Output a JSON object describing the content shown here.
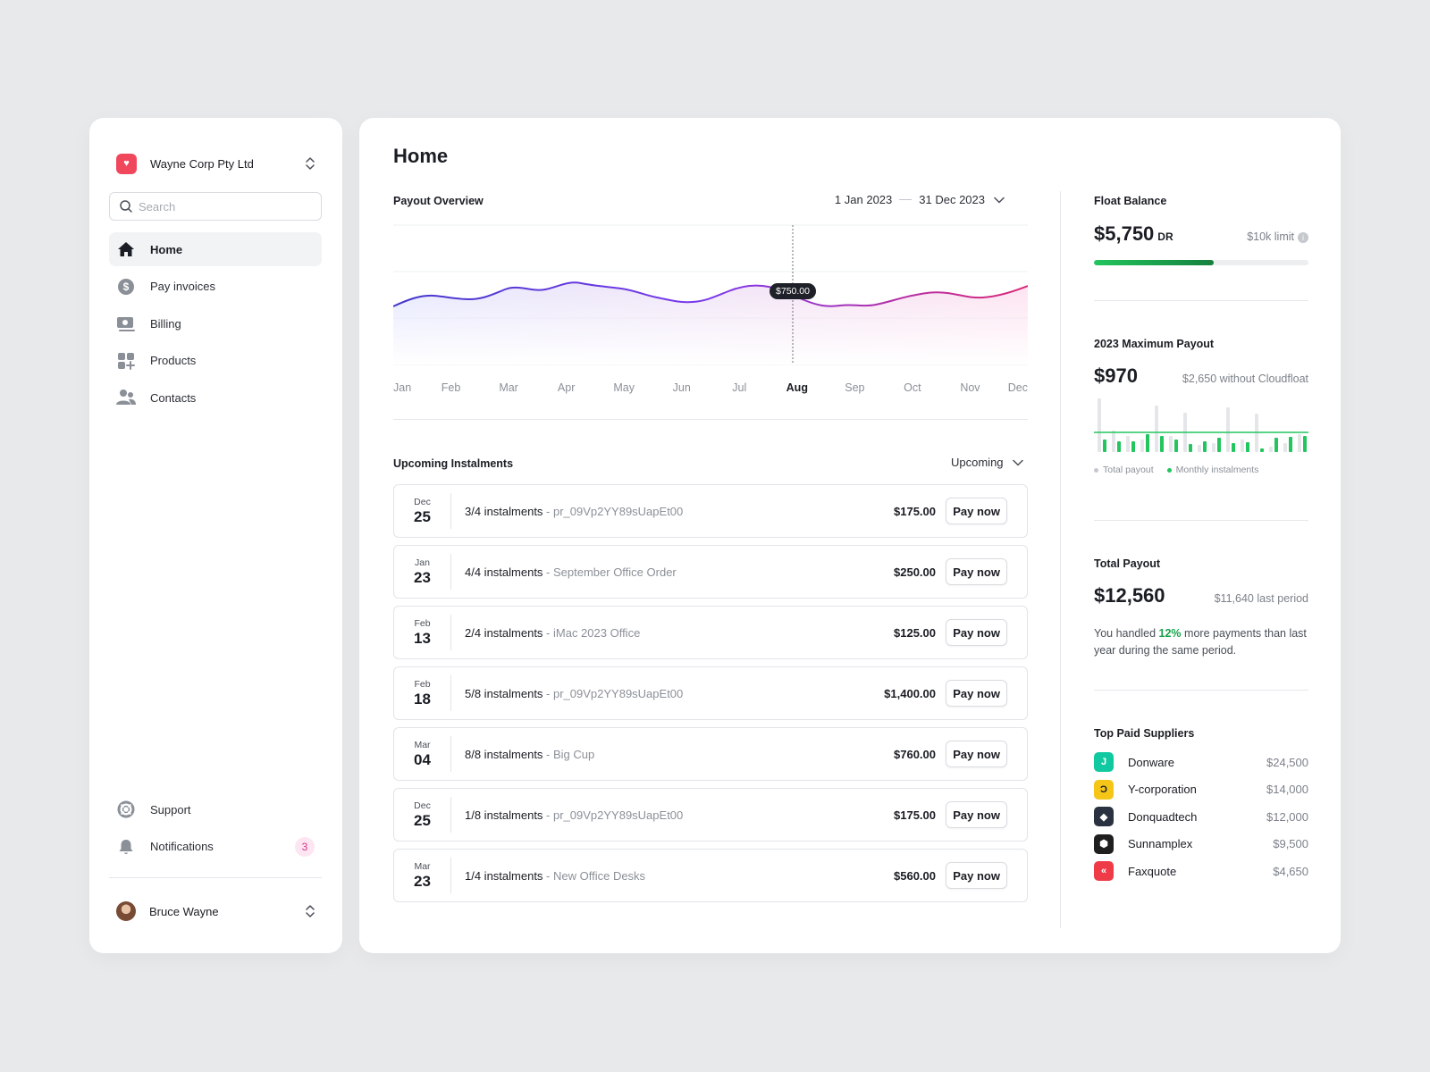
{
  "colors": {
    "accent_pink": "#d6338c",
    "accent_green": "#16a34a",
    "brand_red": "#f0475c"
  },
  "sidebar": {
    "org_name": "Wayne Corp Pty Ltd",
    "search_placeholder": "Search",
    "items": [
      {
        "label": "Home",
        "icon": "home-icon"
      },
      {
        "label": "Pay invoices",
        "icon": "dollar-icon"
      },
      {
        "label": "Billing",
        "icon": "billing-icon"
      },
      {
        "label": "Products",
        "icon": "products-icon"
      },
      {
        "label": "Contacts",
        "icon": "contacts-icon"
      }
    ],
    "bottom_items": [
      {
        "label": "Support",
        "icon": "support-icon"
      },
      {
        "label": "Notifications",
        "icon": "bell-icon",
        "badge": "3"
      }
    ],
    "user_name": "Bruce Wayne"
  },
  "main": {
    "title": "Home",
    "payout_overview": {
      "title": "Payout Overview",
      "date_from": "1 Jan 2023",
      "date_to": "31 Dec 2023",
      "tooltip": "$750.00",
      "months": [
        "Jan",
        "Feb",
        "Mar",
        "Apr",
        "May",
        "Jun",
        "Jul",
        "Aug",
        "Sep",
        "Oct",
        "Nov",
        "Dec"
      ],
      "active_month": "Aug"
    },
    "instalments": {
      "title": "Upcoming Instalments",
      "filter": "Upcoming",
      "pay_label": "Pay now",
      "rows": [
        {
          "month": "Dec",
          "day": "25",
          "main": "3/4 instalments",
          "sub": " - pr_09Vp2YY89sUapEt00",
          "amount": "$175.00"
        },
        {
          "month": "Jan",
          "day": "23",
          "main": "4/4 instalments",
          "sub": " - September Office Order",
          "amount": "$250.00"
        },
        {
          "month": "Feb",
          "day": "13",
          "main": "2/4 instalments",
          "sub": " - iMac 2023 Office",
          "amount": "$125.00"
        },
        {
          "month": "Feb",
          "day": "18",
          "main": "5/8 instalments",
          "sub": " - pr_09Vp2YY89sUapEt00",
          "amount": "$1,400.00"
        },
        {
          "month": "Mar",
          "day": "04",
          "main": "8/8 instalments",
          "sub": " - Big Cup",
          "amount": "$760.00"
        },
        {
          "month": "Dec",
          "day": "25",
          "main": "1/8 instalments",
          "sub": " - pr_09Vp2YY89sUapEt00",
          "amount": "$175.00"
        },
        {
          "month": "Mar",
          "day": "23",
          "main": "1/4 instalments",
          "sub": " - New Office Desks",
          "amount": "$560.00"
        }
      ]
    }
  },
  "right": {
    "float_balance": {
      "title": "Float Balance",
      "value": "$5,750",
      "suffix": "DR",
      "limit": "$10k limit",
      "progress": 0.56
    },
    "max_payout": {
      "title": "2023 Maximum Payout",
      "value": "$970",
      "note": "$2,650 without Cloudfloat",
      "legend_total": "Total payout",
      "legend_monthly": "Monthly instalments"
    },
    "total_payout": {
      "title": "Total Payout",
      "value": "$12,560",
      "note": "$11,640 last period",
      "text_before": "You handled ",
      "highlight": "12%",
      "text_after": " more payments than last year during the same period."
    },
    "suppliers": {
      "title": "Top Paid Suppliers",
      "items": [
        {
          "name": "Donware",
          "amount": "$24,500",
          "color": "#10c9a0"
        },
        {
          "name": "Y-corporation",
          "amount": "$14,000",
          "color": "#f5c518"
        },
        {
          "name": "Donquadtech",
          "amount": "$12,000",
          "color": "#2a3140"
        },
        {
          "name": "Sunnamplex",
          "amount": "$9,500",
          "color": "#1f1f1f"
        },
        {
          "name": "Faxquote",
          "amount": "$4,650",
          "color": "#ef3a47"
        }
      ]
    }
  }
}
